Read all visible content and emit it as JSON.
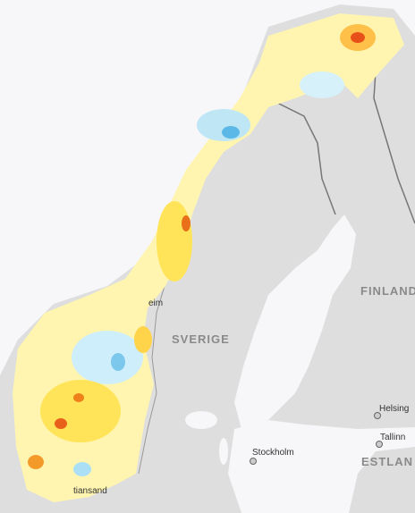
{
  "map": {
    "labels": {
      "countries": [
        "FINLAND",
        "SVERIGE",
        "ESTLAN"
      ],
      "cities": [
        "Helsing",
        "Tallinn",
        "Stockholm",
        "eim",
        "tiansand"
      ]
    }
  }
}
